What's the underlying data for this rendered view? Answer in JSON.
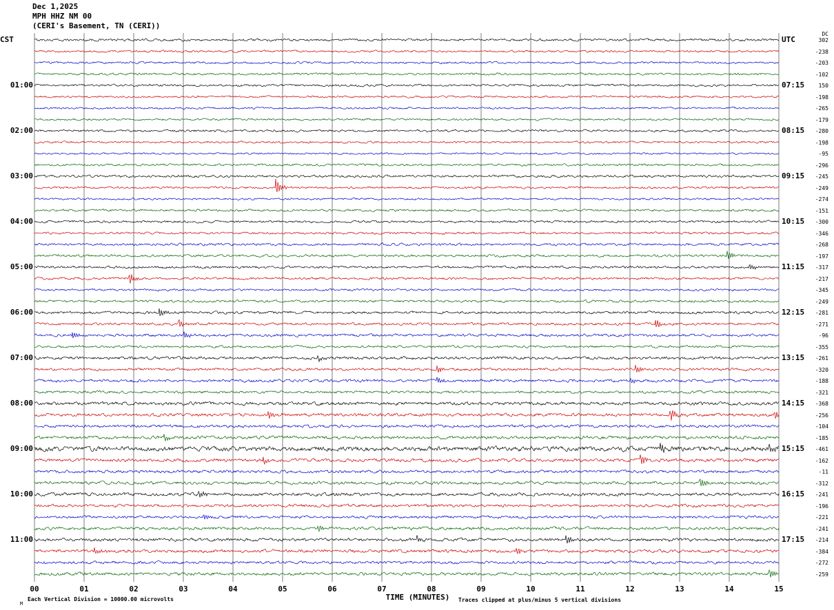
{
  "chart_data": {
    "type": "line",
    "variant": "seismogram-helicorder",
    "title": "Dec 1,2025",
    "station": "MPH HHZ NM 00",
    "location": "(CERI's Basement, TN (CERI))",
    "xlabel": "TIME (MINUTES)",
    "scale_note": "Each Vertical Division = 10000.00 microvolts",
    "clip_note": "Traces clipped at plus/minus 5 vertical divisions",
    "corner_mark": "M",
    "left_header": "CST",
    "right_header": "UTC",
    "dc_header": "DC",
    "x_ticks": [
      "00",
      "01",
      "02",
      "03",
      "04",
      "05",
      "06",
      "07",
      "08",
      "09",
      "10",
      "11",
      "12",
      "13",
      "14",
      "15"
    ],
    "x_range_minutes": [
      0,
      15
    ],
    "minutes_per_line": 15,
    "traces_per_hour": 4,
    "color_cycle": [
      "black",
      "red",
      "blue",
      "green"
    ],
    "trace_colors": {
      "black": "#000000",
      "red": "#cc0000",
      "blue": "#0000cc",
      "green": "#006400"
    },
    "grid_color": "#5a5a5a",
    "groups": [
      {
        "left": "",
        "right": "",
        "dc": [
          302,
          -238,
          -203,
          -102
        ],
        "noise": [
          1.0,
          0.85,
          0.85,
          0.9
        ]
      },
      {
        "left": "01:00",
        "right": "07:15",
        "dc": [
          150,
          -198,
          -265,
          -179
        ],
        "noise": [
          0.95,
          0.85,
          0.8,
          0.85
        ]
      },
      {
        "left": "02:00",
        "right": "08:15",
        "dc": [
          -280,
          -198,
          -95,
          -296
        ],
        "noise": [
          0.95,
          0.85,
          0.75,
          0.9
        ]
      },
      {
        "left": "03:00",
        "right": "09:15",
        "dc": [
          -245,
          -249,
          -274,
          -151
        ],
        "noise": [
          1.0,
          0.9,
          0.8,
          0.95
        ]
      },
      {
        "left": "04:00",
        "right": "10:15",
        "dc": [
          -300,
          -346,
          -268,
          -197
        ],
        "noise": [
          0.95,
          0.95,
          1.0,
          1.0
        ]
      },
      {
        "left": "05:00",
        "right": "11:15",
        "dc": [
          -317,
          -217,
          -345,
          -249
        ],
        "noise": [
          1.0,
          1.0,
          0.9,
          1.0
        ]
      },
      {
        "left": "06:00",
        "right": "12:15",
        "dc": [
          -281,
          -271,
          -96,
          -355
        ],
        "noise": [
          1.1,
          1.05,
          1.1,
          1.0
        ]
      },
      {
        "left": "07:00",
        "right": "13:15",
        "dc": [
          -261,
          -320,
          -188,
          -321
        ],
        "noise": [
          1.2,
          1.1,
          1.2,
          1.1
        ]
      },
      {
        "left": "08:00",
        "right": "14:15",
        "dc": [
          -368,
          -256,
          -104,
          -185
        ],
        "noise": [
          1.35,
          1.3,
          1.2,
          1.3
        ]
      },
      {
        "left": "09:00",
        "right": "15:15",
        "dc": [
          -461,
          -162,
          -11,
          -312
        ],
        "noise": [
          1.9,
          1.4,
          1.2,
          1.3
        ]
      },
      {
        "left": "10:00",
        "right": "16:15",
        "dc": [
          -241,
          -196,
          -221,
          -241
        ],
        "noise": [
          1.35,
          1.2,
          1.1,
          1.25
        ]
      },
      {
        "left": "11:00",
        "right": "17:15",
        "dc": [
          -214,
          -384,
          -272,
          -259
        ],
        "noise": [
          1.35,
          1.3,
          1.15,
          1.25
        ]
      }
    ],
    "events": [
      {
        "g": 3,
        "c": 1,
        "m": 4.85,
        "a": 14
      },
      {
        "g": 4,
        "c": 3,
        "m": 13.95,
        "a": 8
      },
      {
        "g": 5,
        "c": 1,
        "m": 1.9,
        "a": 9
      },
      {
        "g": 5,
        "c": 0,
        "m": 14.4,
        "a": 4
      },
      {
        "g": 6,
        "c": 0,
        "m": 2.5,
        "a": 9
      },
      {
        "g": 6,
        "c": 1,
        "m": 2.9,
        "a": 7
      },
      {
        "g": 6,
        "c": 1,
        "m": 12.5,
        "a": 8
      },
      {
        "g": 6,
        "c": 2,
        "m": 0.75,
        "a": 6
      },
      {
        "g": 6,
        "c": 2,
        "m": 3.0,
        "a": 5
      },
      {
        "g": 7,
        "c": 0,
        "m": 5.7,
        "a": 5
      },
      {
        "g": 7,
        "c": 1,
        "m": 8.1,
        "a": 7
      },
      {
        "g": 7,
        "c": 1,
        "m": 12.1,
        "a": 7
      },
      {
        "g": 7,
        "c": 2,
        "m": 8.1,
        "a": 5
      },
      {
        "g": 7,
        "c": 2,
        "m": 12.0,
        "a": 5
      },
      {
        "g": 8,
        "c": 1,
        "m": 12.8,
        "a": 10
      },
      {
        "g": 8,
        "c": 1,
        "m": 14.9,
        "a": 8
      },
      {
        "g": 8,
        "c": 1,
        "m": 4.7,
        "a": 6
      },
      {
        "g": 8,
        "c": 3,
        "m": 2.6,
        "a": 5
      },
      {
        "g": 9,
        "c": 0,
        "m": 12.6,
        "a": 8
      },
      {
        "g": 9,
        "c": 0,
        "m": 14.8,
        "a": 7
      },
      {
        "g": 9,
        "c": 1,
        "m": 4.6,
        "a": 6
      },
      {
        "g": 9,
        "c": 1,
        "m": 12.2,
        "a": 8
      },
      {
        "g": 9,
        "c": 3,
        "m": 13.4,
        "a": 9
      },
      {
        "g": 10,
        "c": 0,
        "m": 3.3,
        "a": 7
      },
      {
        "g": 10,
        "c": 2,
        "m": 3.4,
        "a": 5
      },
      {
        "g": 10,
        "c": 3,
        "m": 5.7,
        "a": 5
      },
      {
        "g": 11,
        "c": 0,
        "m": 10.7,
        "a": 7
      },
      {
        "g": 11,
        "c": 0,
        "m": 7.7,
        "a": 6
      },
      {
        "g": 11,
        "c": 1,
        "m": 1.2,
        "a": 6
      },
      {
        "g": 11,
        "c": 1,
        "m": 9.7,
        "a": 6
      },
      {
        "g": 11,
        "c": 3,
        "m": 14.8,
        "a": 7
      }
    ]
  }
}
